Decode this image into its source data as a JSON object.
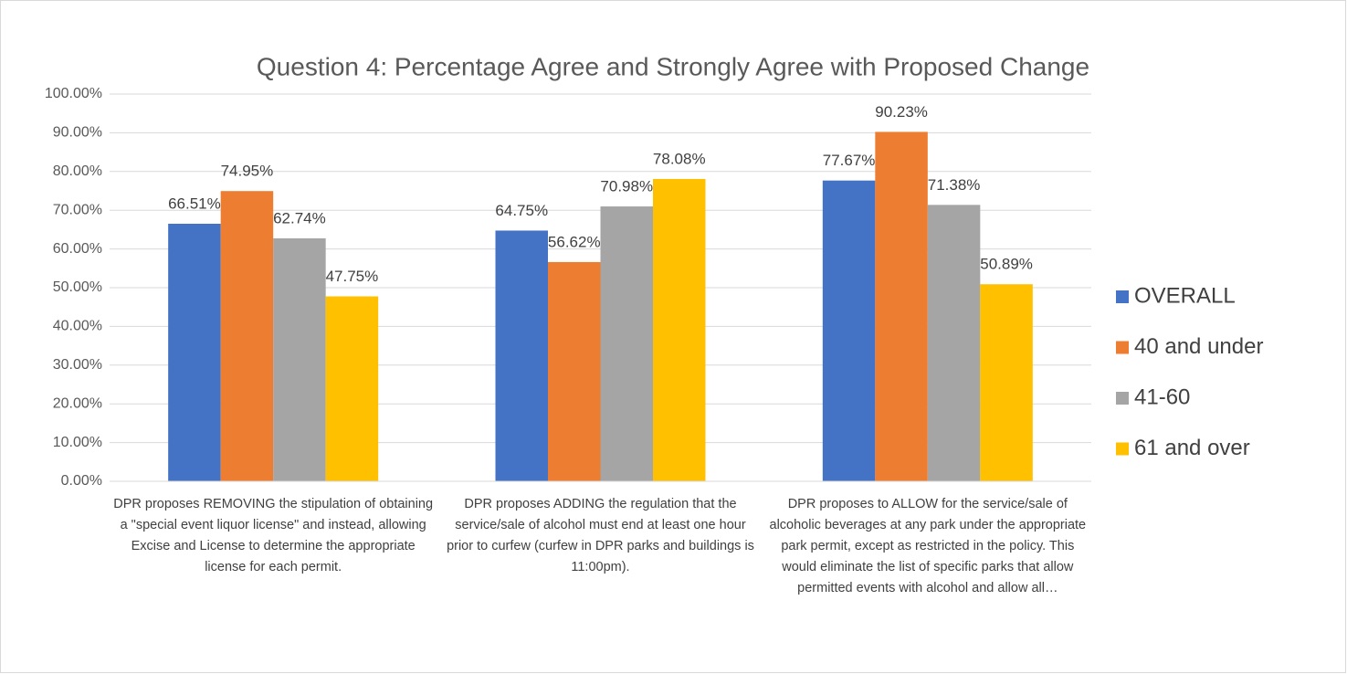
{
  "chart_data": {
    "type": "bar",
    "title": "Question 4: Percentage Agree and Strongly Agree with Proposed Change",
    "categories": [
      "DPR proposes REMOVING the stipulation of obtaining a \"special event liquor license\" and instead, allowing Excise and License to determine the appropriate license for each permit.",
      "DPR proposes ADDING the regulation that the service/sale of alcohol must end at least one hour prior to curfew (curfew in DPR parks and buildings is 11:00pm).",
      "DPR proposes to ALLOW for the service/sale of alcoholic beverages at any park under the appropriate park permit, except as restricted in the policy. This would eliminate the list of specific parks that allow permitted events with alcohol and allow all…"
    ],
    "series": [
      {
        "name": "OVERALL",
        "color": "#4472c4",
        "values": [
          66.51,
          64.75,
          77.67
        ],
        "value_labels": [
          "66.51%",
          "64.75%",
          "77.67%"
        ]
      },
      {
        "name": "40 and under",
        "color": "#ed7d31",
        "values": [
          74.95,
          56.62,
          90.23
        ],
        "value_labels": [
          "74.95%",
          "56.62%",
          "90.23%"
        ]
      },
      {
        "name": "41-60",
        "color": "#a5a5a5",
        "values": [
          62.74,
          70.98,
          71.38
        ],
        "value_labels": [
          "62.74%",
          "70.98%",
          "71.38%"
        ]
      },
      {
        "name": "61 and over",
        "color": "#ffc000",
        "values": [
          47.75,
          78.08,
          50.89
        ],
        "value_labels": [
          "47.75%",
          "78.08%",
          "50.89%"
        ]
      }
    ],
    "ylim": [
      0,
      100
    ],
    "yticks": [
      {
        "value": 0,
        "label": "0.00%"
      },
      {
        "value": 10,
        "label": "10.00%"
      },
      {
        "value": 20,
        "label": "20.00%"
      },
      {
        "value": 30,
        "label": "30.00%"
      },
      {
        "value": 40,
        "label": "40.00%"
      },
      {
        "value": 50,
        "label": "50.00%"
      },
      {
        "value": 60,
        "label": "60.00%"
      },
      {
        "value": 70,
        "label": "70.00%"
      },
      {
        "value": 80,
        "label": "80.00%"
      },
      {
        "value": 90,
        "label": "90.00%"
      },
      {
        "value": 100,
        "label": "100.00%"
      }
    ],
    "grid": true,
    "legend": "right"
  }
}
